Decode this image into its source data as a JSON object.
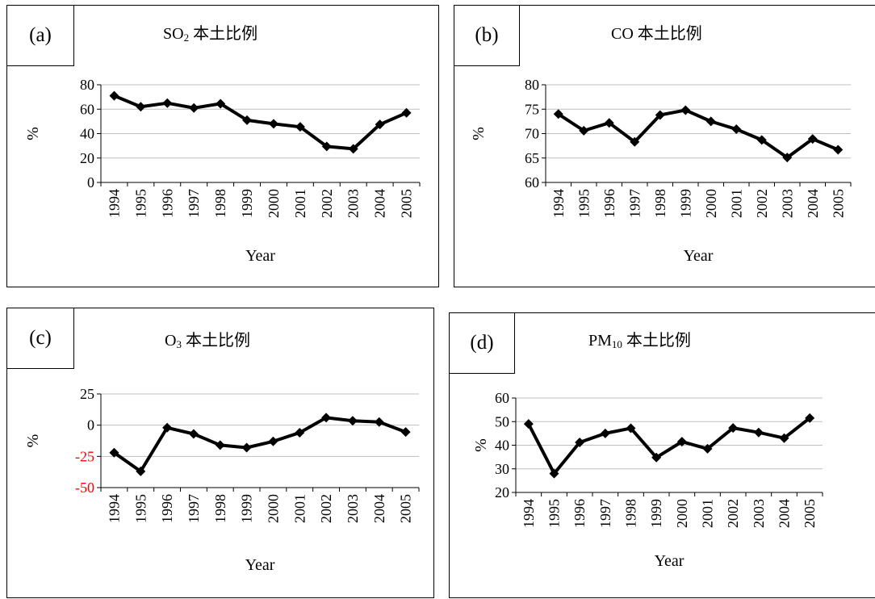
{
  "chart_data": [
    {
      "type": "line",
      "tag": "(a)",
      "title": {
        "pre": "SO",
        "sub": "2",
        "post": " 本土比例"
      },
      "xlabel": "Year",
      "ylabel": "%",
      "categories": [
        "1994",
        "1995",
        "1996",
        "1997",
        "1998",
        "1999",
        "2000",
        "2001",
        "2002",
        "2003",
        "2004",
        "2005"
      ],
      "values": [
        71,
        62,
        65,
        61,
        64.5,
        51,
        48,
        45.5,
        29.5,
        27.5,
        47.5,
        57
      ],
      "ylim": [
        0,
        80
      ],
      "yticks": [
        0,
        20,
        40,
        60,
        80
      ],
      "ytick_colors": {},
      "grid": true,
      "line_color": "#000000",
      "marker": "diamond"
    },
    {
      "type": "line",
      "tag": "(b)",
      "title": {
        "pre": "CO",
        "sub": "",
        "post": " 本土比例"
      },
      "xlabel": "Year",
      "ylabel": "%",
      "categories": [
        "1994",
        "1995",
        "1996",
        "1997",
        "1998",
        "1999",
        "2000",
        "2001",
        "2002",
        "2003",
        "2004",
        "2005"
      ],
      "values": [
        74,
        70.6,
        72.2,
        68.3,
        73.8,
        74.8,
        72.5,
        70.9,
        68.7,
        65.1,
        68.9,
        66.7
      ],
      "ylim": [
        60,
        80
      ],
      "yticks": [
        60,
        65,
        70,
        75,
        80
      ],
      "ytick_colors": {},
      "grid": true,
      "line_color": "#000000",
      "marker": "diamond"
    },
    {
      "type": "line",
      "tag": "(c)",
      "title": {
        "pre": "O",
        "sub": "3",
        "post": " 本土比例"
      },
      "xlabel": "Year",
      "ylabel": "%",
      "categories": [
        "1994",
        "1995",
        "1996",
        "1997",
        "1998",
        "1999",
        "2000",
        "2001",
        "2002",
        "2003",
        "2004",
        "2005"
      ],
      "values": [
        -22,
        -37,
        -2,
        -7,
        -16,
        -18,
        -13,
        -6,
        6,
        3.5,
        2.5,
        -5.5
      ],
      "ylim": [
        -50,
        25
      ],
      "yticks": [
        -50,
        -25,
        0,
        25
      ],
      "ytick_colors": {
        "-50": "#ff0000",
        "-25": "#ff0000"
      },
      "grid": true,
      "line_color": "#000000",
      "marker": "diamond"
    },
    {
      "type": "line",
      "tag": "(d)",
      "title": {
        "pre": "PM",
        "sub": "10",
        "post": " 本土比例"
      },
      "xlabel": "Year",
      "ylabel": "%",
      "categories": [
        "1994",
        "1995",
        "1996",
        "1997",
        "1998",
        "1999",
        "2000",
        "2001",
        "2002",
        "2003",
        "2004",
        "2005"
      ],
      "values": [
        49,
        28,
        41.2,
        45,
        47.2,
        34.8,
        41.5,
        38.5,
        47.3,
        45.4,
        43,
        51.5
      ],
      "ylim": [
        20,
        60
      ],
      "yticks": [
        20,
        30,
        40,
        50,
        60
      ],
      "ytick_colors": {},
      "grid": true,
      "line_color": "#000000",
      "marker": "diamond"
    }
  ]
}
